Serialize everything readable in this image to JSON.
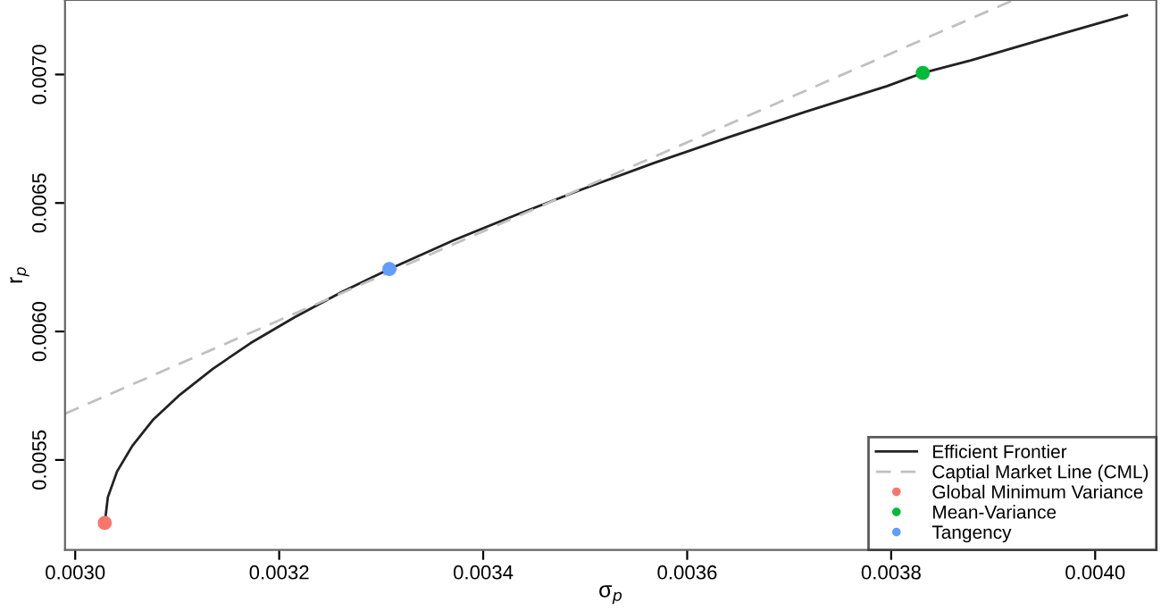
{
  "chart_data": {
    "type": "line",
    "xlabel": "σ$_{p}$",
    "ylabel": "r$_{p}$",
    "xlim": [
      0.00299,
      0.00406
    ],
    "ylim": [
      0.00515,
      0.00729
    ],
    "xticks": [
      {
        "value": 0.003,
        "label": "0.0030"
      },
      {
        "value": 0.0032,
        "label": "0.0032"
      },
      {
        "value": 0.0034,
        "label": "0.0034"
      },
      {
        "value": 0.0036,
        "label": "0.0036"
      },
      {
        "value": 0.0038,
        "label": "0.0038"
      },
      {
        "value": 0.004,
        "label": "0.0040"
      }
    ],
    "yticks": [
      {
        "value": 0.0055,
        "label": "0.0055"
      },
      {
        "value": 0.006,
        "label": "0.0060"
      },
      {
        "value": 0.0065,
        "label": "0.0065"
      },
      {
        "value": 0.007,
        "label": "0.0070"
      }
    ],
    "grid": false,
    "legend": "bottom right",
    "series": [
      {
        "name": "Efficient Frontier",
        "color": "#222222",
        "line_style": "solid",
        "x": [
          0.003029,
          0.003032,
          0.003041,
          0.003056,
          0.003076,
          0.003103,
          0.003135,
          0.003172,
          0.003215,
          0.003262,
          0.003308,
          0.003371,
          0.003433,
          0.003498,
          0.003567,
          0.00364,
          0.003716,
          0.003796,
          0.003831,
          0.003878,
          0.003964,
          0.004031
        ],
        "values": [
          0.005255,
          0.005355,
          0.005455,
          0.005555,
          0.005655,
          0.005755,
          0.005855,
          0.005955,
          0.006055,
          0.006155,
          0.006243,
          0.006355,
          0.006455,
          0.006555,
          0.006655,
          0.006755,
          0.006855,
          0.006955,
          0.007006,
          0.007055,
          0.007155,
          0.007231
        ]
      },
      {
        "name": "Captial Market Line (CML)",
        "color": "#c0c0c0",
        "line_style": "dashed",
        "x": [
          0.00299,
          0.00392
        ],
        "values": [
          0.00568,
          0.00729
        ]
      },
      {
        "name": "Global Minimum Variance",
        "type": "scatter",
        "color": "#f8766d",
        "marker": "circle",
        "x": [
          0.003029
        ],
        "values": [
          0.005255
        ]
      },
      {
        "name": "Mean-Variance",
        "type": "scatter",
        "color": "#00ba38",
        "marker": "circle",
        "x": [
          0.003831
        ],
        "values": [
          0.007006
        ]
      },
      {
        "name": "Tangency",
        "type": "scatter",
        "color": "#619cff",
        "marker": "circle",
        "x": [
          0.003308
        ],
        "values": [
          0.006243
        ]
      }
    ]
  }
}
